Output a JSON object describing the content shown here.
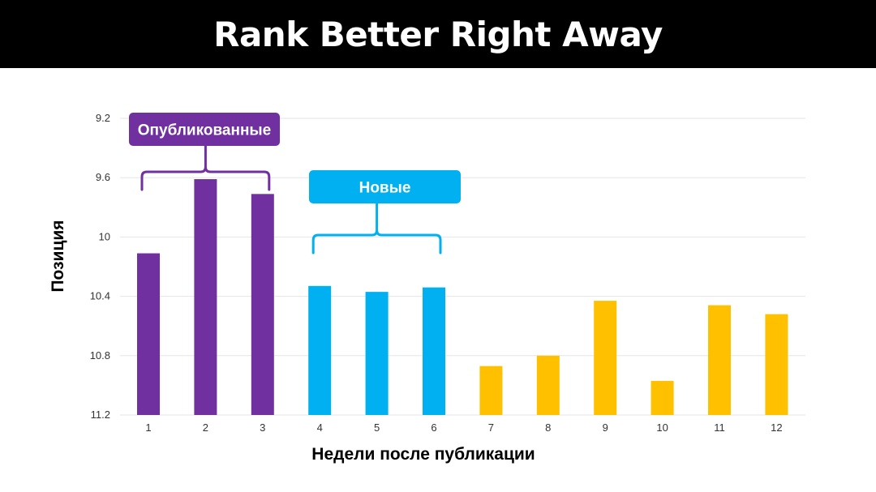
{
  "header": {
    "title": "Rank Better Right Away"
  },
  "colors": {
    "purple": "#7030A0",
    "blue": "#00B0F0",
    "yellow": "#FFC000",
    "grid": "#e6e6e6"
  },
  "chart_data": {
    "type": "bar",
    "title": "Rank Better Right Away",
    "xlabel": "Недели после публикации",
    "ylabel": "Позиция",
    "ylim": [
      9.2,
      11.2
    ],
    "y_inverted": true,
    "grid": true,
    "y_ticks": [
      "9.2",
      "9.6",
      "10",
      "10.4",
      "10.8",
      "11.2"
    ],
    "categories": [
      "1",
      "2",
      "3",
      "4",
      "5",
      "6",
      "7",
      "8",
      "9",
      "10",
      "11",
      "12"
    ],
    "values": [
      10.11,
      9.61,
      9.71,
      10.33,
      10.37,
      10.34,
      10.87,
      10.8,
      10.43,
      10.97,
      10.46,
      10.52
    ],
    "bar_colors": [
      "purple",
      "purple",
      "purple",
      "blue",
      "blue",
      "blue",
      "yellow",
      "yellow",
      "yellow",
      "yellow",
      "yellow",
      "yellow"
    ],
    "annotations": [
      {
        "text": "Опубликованные",
        "color": "purple",
        "from": 0,
        "to": 2
      },
      {
        "text": "Новые",
        "color": "blue",
        "from": 3,
        "to": 5
      }
    ]
  }
}
